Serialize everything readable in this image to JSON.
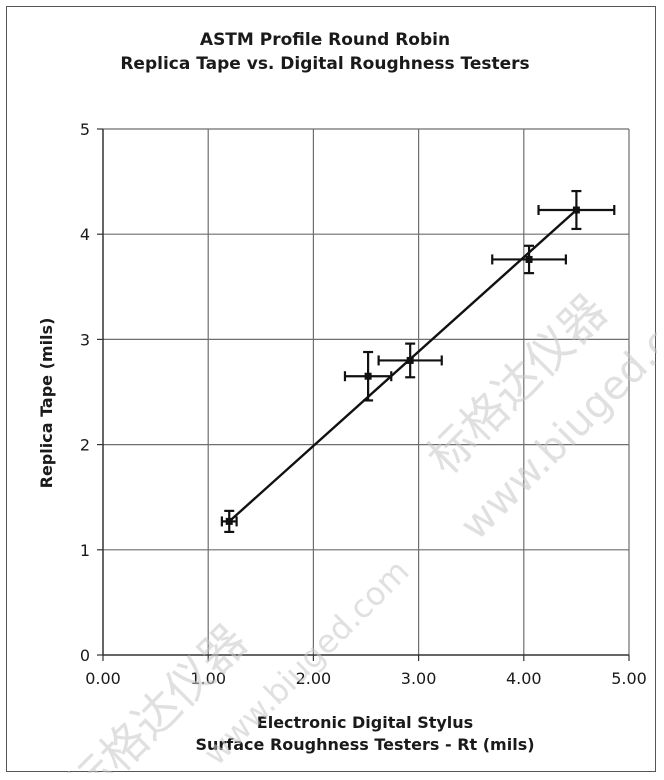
{
  "chart_data": {
    "type": "scatter",
    "title": "ASTM Profile Round Robin",
    "subtitle": "Replica Tape vs. Digital Roughness Testers",
    "xlabel_line1": "Electronic Digital Stylus",
    "xlabel_line2": "Surface Roughness Testers - Rt (mils)",
    "ylabel": "Replica Tape (mils)",
    "xlim": [
      0,
      5
    ],
    "ylim": [
      0,
      5
    ],
    "x_ticks": [
      "0.00",
      "1.00",
      "2.00",
      "3.00",
      "4.00",
      "5.00"
    ],
    "y_ticks": [
      "0",
      "1",
      "2",
      "3",
      "4",
      "5"
    ],
    "grid": true,
    "points": [
      {
        "x": 1.2,
        "y": 1.27,
        "x_err": 0.07,
        "y_err": 0.1
      },
      {
        "x": 2.52,
        "y": 2.65,
        "x_err": 0.22,
        "y_err": 0.23
      },
      {
        "x": 2.92,
        "y": 2.8,
        "x_err": 0.3,
        "y_err": 0.16
      },
      {
        "x": 4.05,
        "y": 3.76,
        "x_err": 0.35,
        "y_err": 0.13
      },
      {
        "x": 4.5,
        "y": 4.23,
        "x_err": 0.36,
        "y_err": 0.18
      }
    ],
    "trendline": {
      "x": [
        1.2,
        4.5
      ],
      "y": [
        1.27,
        4.23
      ]
    },
    "colors": {
      "marker": "#111111",
      "grid": "#6e6e6e",
      "watermark": "#c8c8c8"
    }
  },
  "watermark": {
    "line1": "标格达仪器",
    "line2": "www.biuged.com"
  }
}
